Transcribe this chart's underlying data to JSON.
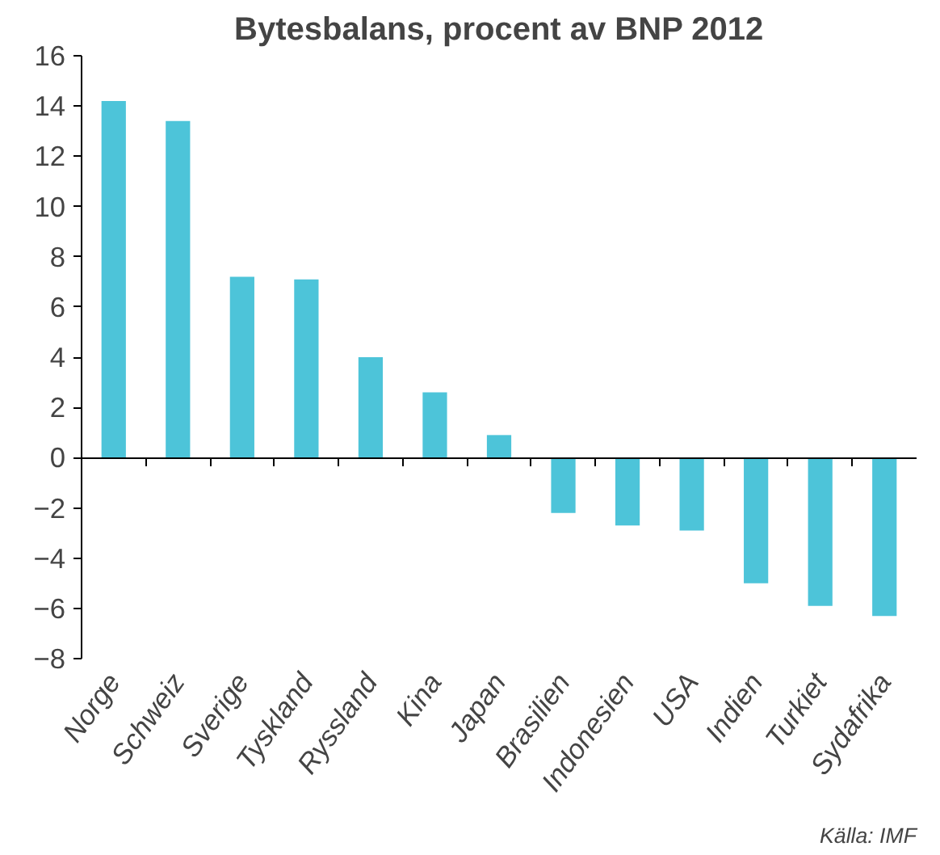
{
  "chart_data": {
    "type": "bar",
    "title": "Bytesbalans, procent av BNP 2012",
    "categories": [
      "Norge",
      "Schweiz",
      "Sverige",
      "Tyskland",
      "Ryssland",
      "Kina",
      "Japan",
      "Brasilien",
      "Indonesien",
      "USA",
      "Indien",
      "Turkiet",
      "Sydafrika"
    ],
    "values": [
      14.2,
      13.4,
      7.2,
      7.1,
      4.0,
      2.6,
      0.9,
      -2.2,
      -2.7,
      -2.9,
      -5.0,
      -5.9,
      -6.3
    ],
    "color": "#4dc4d9",
    "ylim": [
      -8,
      16
    ],
    "yticks": [
      -8,
      -6,
      -4,
      -2,
      0,
      2,
      4,
      6,
      8,
      10,
      12,
      14,
      16
    ],
    "annotations": [
      "Källa: IMF"
    ]
  }
}
